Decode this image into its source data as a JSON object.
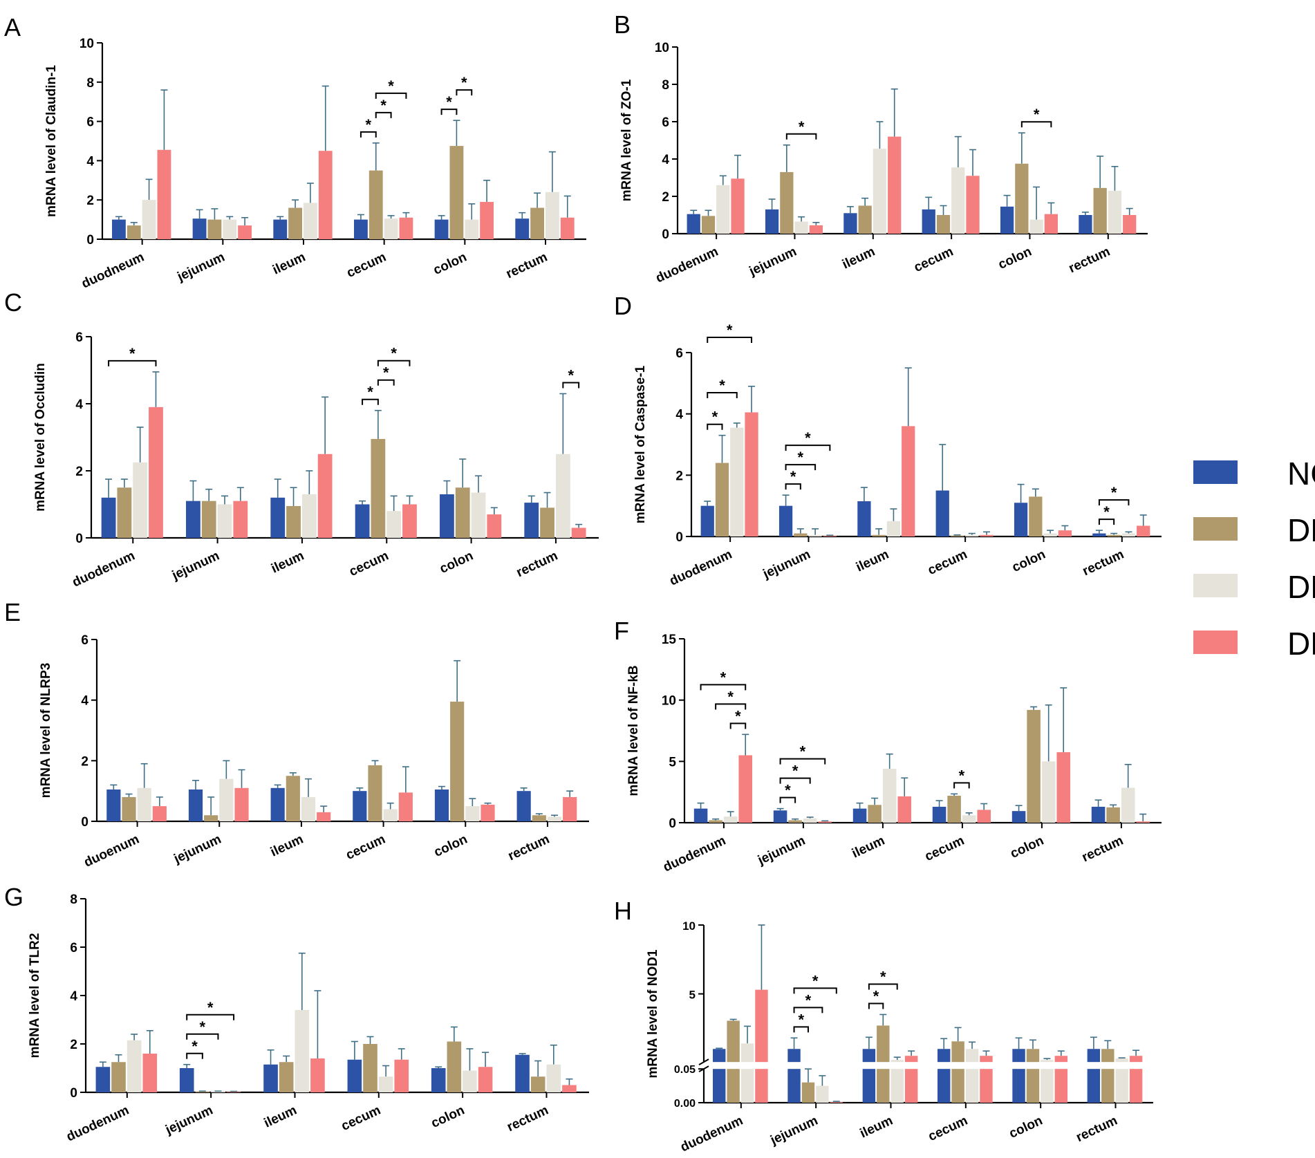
{
  "legend": {
    "groups": [
      "NC",
      "DL",
      "DM",
      "DH"
    ],
    "colors": [
      "#2d53a6",
      "#b09a6c",
      "#e6e3da",
      "#f57f7f"
    ]
  },
  "chart_data": [
    {
      "type": "bar",
      "panel_letter": "A",
      "ylabel": "mRNA level of Claudin-1",
      "ylim": [
        0,
        10
      ],
      "yticks": [
        0,
        2,
        4,
        6,
        8,
        10
      ],
      "categories": [
        "duodneum",
        "jejunum",
        "ileum",
        "cecum",
        "colon",
        "rectum"
      ],
      "series": [
        {
          "name": "NC",
          "values": [
            1.0,
            1.05,
            1.0,
            1.0,
            1.0,
            1.05
          ],
          "errors": [
            0.15,
            0.45,
            0.15,
            0.25,
            0.2,
            0.3
          ]
        },
        {
          "name": "DL",
          "values": [
            0.7,
            1.0,
            1.6,
            3.5,
            4.75,
            1.6
          ],
          "errors": [
            0.15,
            0.55,
            0.4,
            1.4,
            1.3,
            0.75
          ]
        },
        {
          "name": "DM",
          "values": [
            2.0,
            1.0,
            1.85,
            1.05,
            1.0,
            2.4
          ],
          "errors": [
            1.05,
            0.15,
            1.0,
            0.15,
            0.8,
            2.05
          ]
        },
        {
          "name": "DH",
          "values": [
            4.55,
            0.7,
            4.5,
            1.1,
            1.9,
            1.1
          ],
          "errors": [
            3.05,
            0.4,
            3.3,
            0.25,
            1.1,
            1.1
          ]
        }
      ],
      "significance": [
        {
          "category": 3,
          "from": "NC",
          "to": "DL",
          "label": "*"
        },
        {
          "category": 3,
          "from": "DL",
          "to": "DM",
          "label": "*"
        },
        {
          "category": 3,
          "from": "DL",
          "to": "DH",
          "label": "*"
        },
        {
          "category": 4,
          "from": "NC",
          "to": "DL",
          "label": "*"
        },
        {
          "category": 4,
          "from": "DL",
          "to": "DM",
          "label": "*"
        }
      ]
    },
    {
      "type": "bar",
      "panel_letter": "B",
      "ylabel": "mRNA level of ZO-1",
      "ylim": [
        0,
        10
      ],
      "yticks": [
        0,
        2,
        4,
        6,
        8,
        10
      ],
      "categories": [
        "duodenum",
        "jejunum",
        "ileum",
        "cecum",
        "colon",
        "rectum"
      ],
      "series": [
        {
          "name": "NC",
          "values": [
            1.05,
            1.3,
            1.1,
            1.3,
            1.45,
            1.0
          ],
          "errors": [
            0.2,
            0.55,
            0.35,
            0.65,
            0.6,
            0.15
          ]
        },
        {
          "name": "DL",
          "values": [
            0.95,
            3.3,
            1.5,
            1.0,
            3.75,
            2.45
          ],
          "errors": [
            0.3,
            1.45,
            0.4,
            0.5,
            1.65,
            1.7
          ]
        },
        {
          "name": "DM",
          "values": [
            2.6,
            0.65,
            4.55,
            3.55,
            0.75,
            2.3
          ],
          "errors": [
            0.5,
            0.25,
            1.45,
            1.65,
            1.75,
            1.3
          ]
        },
        {
          "name": "DH",
          "values": [
            2.95,
            0.45,
            5.2,
            3.1,
            1.05,
            1.0
          ],
          "errors": [
            1.25,
            0.15,
            2.55,
            1.4,
            0.6,
            0.35
          ]
        }
      ],
      "significance": [
        {
          "category": 1,
          "from": "DL",
          "to": "DH",
          "label": "*"
        },
        {
          "category": 4,
          "from": "DL",
          "to": "DH",
          "label": "*"
        }
      ]
    },
    {
      "type": "bar",
      "panel_letter": "C",
      "ylabel": "mRNA level of Occludin",
      "ylim": [
        0,
        6
      ],
      "yticks": [
        0,
        2,
        4,
        6
      ],
      "categories": [
        "duodenum",
        "jejunum",
        "ileum",
        "cecum",
        "colon",
        "rectum"
      ],
      "series": [
        {
          "name": "NC",
          "values": [
            1.2,
            1.1,
            1.2,
            1.0,
            1.3,
            1.05
          ],
          "errors": [
            0.55,
            0.6,
            0.55,
            0.1,
            0.4,
            0.2
          ]
        },
        {
          "name": "DL",
          "values": [
            1.5,
            1.1,
            0.95,
            2.95,
            1.5,
            0.9
          ],
          "errors": [
            0.25,
            0.35,
            0.55,
            0.85,
            0.85,
            0.45
          ]
        },
        {
          "name": "DM",
          "values": [
            2.25,
            1.0,
            1.3,
            0.8,
            1.35,
            2.5
          ],
          "errors": [
            1.05,
            0.25,
            0.7,
            0.45,
            0.5,
            1.8
          ]
        },
        {
          "name": "DH",
          "values": [
            3.9,
            1.1,
            2.5,
            1.0,
            0.7,
            0.3
          ],
          "errors": [
            1.05,
            0.4,
            1.7,
            0.25,
            0.2,
            0.1
          ]
        }
      ],
      "significance": [
        {
          "category": 0,
          "from": "NC",
          "to": "DH",
          "label": "*"
        },
        {
          "category": 3,
          "from": "NC",
          "to": "DL",
          "label": "*"
        },
        {
          "category": 3,
          "from": "DL",
          "to": "DM",
          "label": "*"
        },
        {
          "category": 3,
          "from": "DL",
          "to": "DH",
          "label": "*"
        },
        {
          "category": 5,
          "from": "DM",
          "to": "DH",
          "label": "*"
        }
      ]
    },
    {
      "type": "bar",
      "panel_letter": "D",
      "ylabel": "mRNA level of Caspase-1",
      "ylim": [
        0,
        6
      ],
      "yticks": [
        0,
        2,
        4,
        6
      ],
      "categories": [
        "duodenum",
        "jejunum",
        "ileum",
        "cecum",
        "colon",
        "rectum"
      ],
      "series": [
        {
          "name": "NC",
          "values": [
            1.0,
            1.0,
            1.15,
            1.5,
            1.1,
            0.1
          ],
          "errors": [
            0.15,
            0.35,
            0.45,
            1.5,
            0.6,
            0.1
          ]
        },
        {
          "name": "DL",
          "values": [
            2.4,
            0.1,
            0.05,
            0.03,
            1.3,
            0.05
          ],
          "errors": [
            0.9,
            0.15,
            0.2,
            0.02,
            0.25,
            0.05
          ]
        },
        {
          "name": "DM",
          "values": [
            3.55,
            0.05,
            0.5,
            0.05,
            0.1,
            0.1
          ],
          "errors": [
            0.15,
            0.2,
            0.4,
            0.05,
            0.1,
            0.05
          ]
        },
        {
          "name": "DH",
          "values": [
            4.05,
            0.02,
            3.6,
            0.05,
            0.2,
            0.35
          ],
          "errors": [
            0.85,
            0.02,
            1.9,
            0.1,
            0.15,
            0.35
          ]
        }
      ],
      "significance": [
        {
          "category": 0,
          "from": "NC",
          "to": "DL",
          "label": "*"
        },
        {
          "category": 0,
          "from": "NC",
          "to": "DM",
          "label": "*"
        },
        {
          "category": 0,
          "from": "NC",
          "to": "DH",
          "label": "*"
        },
        {
          "category": 1,
          "from": "NC",
          "to": "DL",
          "label": "*"
        },
        {
          "category": 1,
          "from": "NC",
          "to": "DM",
          "label": "*"
        },
        {
          "category": 1,
          "from": "NC",
          "to": "DH",
          "label": "*"
        },
        {
          "category": 5,
          "from": "NC",
          "to": "DL",
          "label": "*"
        },
        {
          "category": 5,
          "from": "NC",
          "to": "DM",
          "label": "*"
        }
      ]
    },
    {
      "type": "bar",
      "panel_letter": "E",
      "ylabel": "mRNA level of NLRP3",
      "ylim": [
        0,
        6
      ],
      "yticks": [
        0,
        2,
        4,
        6
      ],
      "categories": [
        "duoenum",
        "jejunum",
        "ileum",
        "cecum",
        "colon",
        "rectum"
      ],
      "series": [
        {
          "name": "NC",
          "values": [
            1.05,
            1.05,
            1.1,
            1.0,
            1.05,
            1.0
          ],
          "errors": [
            0.15,
            0.3,
            0.1,
            0.1,
            0.1,
            0.1
          ]
        },
        {
          "name": "DL",
          "values": [
            0.8,
            0.2,
            1.5,
            1.85,
            3.95,
            0.2
          ],
          "errors": [
            0.1,
            0.6,
            0.1,
            0.15,
            1.35,
            0.05
          ]
        },
        {
          "name": "DM",
          "values": [
            1.1,
            1.4,
            0.8,
            0.4,
            0.5,
            0.15
          ],
          "errors": [
            0.8,
            0.6,
            0.6,
            0.2,
            0.25,
            0.05
          ]
        },
        {
          "name": "DH",
          "values": [
            0.5,
            1.1,
            0.3,
            0.95,
            0.55,
            0.8
          ],
          "errors": [
            0.3,
            0.6,
            0.2,
            0.85,
            0.05,
            0.2
          ]
        }
      ],
      "significance": []
    },
    {
      "type": "bar",
      "panel_letter": "F",
      "ylabel": "mRNA level of NF-kB",
      "ylim": [
        0,
        15
      ],
      "yticks": [
        0,
        5,
        10,
        15
      ],
      "categories": [
        "duodenum",
        "jejunum",
        "ileum",
        "cecum",
        "colon",
        "rectum"
      ],
      "series": [
        {
          "name": "NC",
          "values": [
            1.15,
            1.0,
            1.15,
            1.3,
            0.95,
            1.3
          ],
          "errors": [
            0.45,
            0.15,
            0.45,
            0.5,
            0.45,
            0.55
          ]
        },
        {
          "name": "DL",
          "values": [
            0.2,
            0.2,
            1.45,
            2.2,
            9.2,
            1.25
          ],
          "errors": [
            0.1,
            0.1,
            0.55,
            0.15,
            0.25,
            0.2
          ]
        },
        {
          "name": "DM",
          "values": [
            0.5,
            0.35,
            4.4,
            0.6,
            5.0,
            2.85
          ],
          "errors": [
            0.4,
            0.1,
            1.2,
            0.2,
            4.6,
            1.9
          ]
        },
        {
          "name": "DH",
          "values": [
            5.5,
            0.1,
            2.15,
            1.05,
            5.75,
            0.1
          ],
          "errors": [
            1.7,
            0.05,
            1.5,
            0.5,
            5.25,
            0.6
          ]
        }
      ],
      "significance": [
        {
          "category": 0,
          "from": "DM",
          "to": "DH",
          "label": "*"
        },
        {
          "category": 0,
          "from": "DL",
          "to": "DH",
          "label": "*"
        },
        {
          "category": 0,
          "from": "NC",
          "to": "DH",
          "label": "*"
        },
        {
          "category": 1,
          "from": "NC",
          "to": "DL",
          "label": "*"
        },
        {
          "category": 1,
          "from": "NC",
          "to": "DM",
          "label": "*"
        },
        {
          "category": 1,
          "from": "NC",
          "to": "DH",
          "label": "*"
        },
        {
          "category": 3,
          "from": "DL",
          "to": "DM",
          "label": "*"
        }
      ]
    },
    {
      "type": "bar",
      "panel_letter": "G",
      "ylabel": "mRNA level of TLR2",
      "ylim": [
        0,
        8
      ],
      "yticks": [
        0,
        2,
        4,
        6,
        8
      ],
      "categories": [
        "duodenum",
        "jejunum",
        "ileum",
        "cecum",
        "colon",
        "rectum"
      ],
      "series": [
        {
          "name": "NC",
          "values": [
            1.05,
            1.0,
            1.15,
            1.35,
            1.0,
            1.55
          ],
          "errors": [
            0.2,
            0.15,
            0.6,
            0.75,
            0.05,
            0.05
          ]
        },
        {
          "name": "DL",
          "values": [
            1.25,
            0.03,
            1.25,
            2.0,
            2.1,
            0.65
          ],
          "errors": [
            0.3,
            0.02,
            0.25,
            0.3,
            0.6,
            0.65
          ]
        },
        {
          "name": "DM",
          "values": [
            2.15,
            0.03,
            3.4,
            0.65,
            0.9,
            1.15
          ],
          "errors": [
            0.25,
            0.02,
            2.35,
            0.45,
            0.9,
            0.8
          ]
        },
        {
          "name": "DH",
          "values": [
            1.6,
            0.02,
            1.4,
            1.35,
            1.05,
            0.3
          ],
          "errors": [
            0.95,
            0.02,
            2.8,
            0.45,
            0.6,
            0.25
          ]
        }
      ],
      "significance": [
        {
          "category": 1,
          "from": "NC",
          "to": "DL",
          "label": "*"
        },
        {
          "category": 1,
          "from": "NC",
          "to": "DM",
          "label": "*"
        },
        {
          "category": 1,
          "from": "NC",
          "to": "DH",
          "label": "*"
        }
      ]
    },
    {
      "type": "bar",
      "panel_letter": "H",
      "ylabel": "mRNA level of NOD1",
      "axis_break": {
        "lower_range": [
          0,
          0.05
        ],
        "upper_range": [
          0.05,
          10
        ]
      },
      "yticks_lower": [
        0.0,
        0.05
      ],
      "ytick_labels_lower": [
        "0.00",
        "0.05"
      ],
      "yticks_upper": [
        5,
        10
      ],
      "ytick_labels_upper": [
        "5",
        "10"
      ],
      "categories": [
        "duodenum",
        "jejunum",
        "ileum",
        "cecum",
        "colon",
        "rectum"
      ],
      "series": [
        {
          "name": "NC",
          "values": [
            1.0,
            1.0,
            1.0,
            1.0,
            1.0,
            1.0
          ],
          "errors": [
            0.05,
            0.8,
            0.85,
            0.75,
            0.8,
            0.85
          ]
        },
        {
          "name": "DL",
          "values": [
            3.05,
            0.03,
            2.7,
            1.55,
            1.0,
            1.0
          ],
          "errors": [
            0.1,
            0.02,
            0.8,
            1.0,
            0.65,
            0.6
          ]
        },
        {
          "name": "DM",
          "values": [
            1.4,
            0.025,
            0.2,
            1.0,
            0.2,
            0.3
          ],
          "errors": [
            1.25,
            0.015,
            0.2,
            0.5,
            0.1,
            0.05
          ]
        },
        {
          "name": "DH",
          "values": [
            5.3,
            0.001,
            0.5,
            0.5,
            0.5,
            0.5
          ],
          "errors": [
            4.7,
            0.001,
            0.35,
            0.35,
            0.35,
            0.4
          ]
        }
      ],
      "significance": [
        {
          "category": 1,
          "from": "NC",
          "to": "DL",
          "label": "*"
        },
        {
          "category": 1,
          "from": "NC",
          "to": "DM",
          "label": "*"
        },
        {
          "category": 1,
          "from": "NC",
          "to": "DH",
          "label": "*"
        },
        {
          "category": 2,
          "from": "NC",
          "to": "DL",
          "label": "*"
        },
        {
          "category": 2,
          "from": "NC",
          "to": "DM",
          "label": "*"
        }
      ]
    }
  ]
}
